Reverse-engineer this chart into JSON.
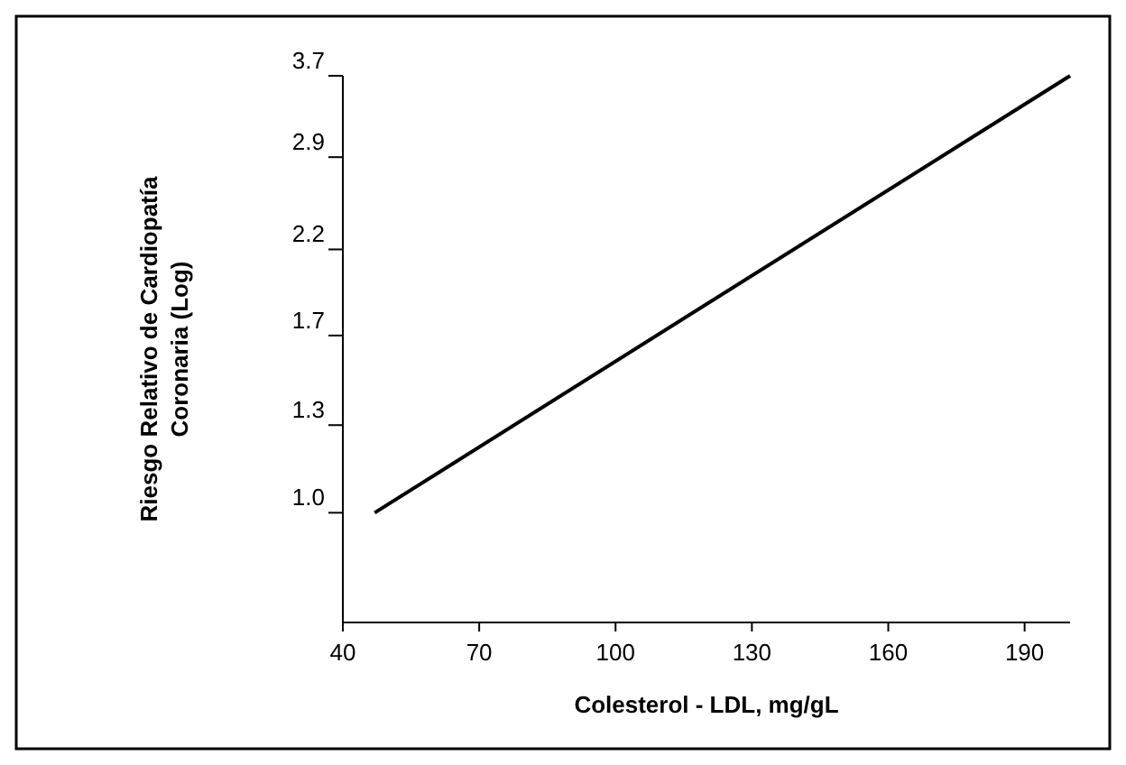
{
  "chart_data": {
    "type": "line",
    "xlabel": "Colesterol - LDL, mg/gL",
    "ylabel": "Riesgo Relativo de Cardiopatía\nCoronaria (Log)",
    "series": [
      {
        "color": "#000000",
        "x": [
          47,
          200
        ],
        "values": [
          1.0,
          3.7
        ]
      }
    ],
    "xlim": [
      40,
      200
    ],
    "xticks": [
      40,
      70,
      100,
      130,
      160,
      190
    ],
    "ylim": [
      0.72,
      3.7
    ],
    "yticks": [
      {
        "value": 1.0,
        "label": "1.0"
      },
      1.3,
      1.7,
      2.2,
      2.9,
      3.7
    ],
    "log": "y",
    "grid": false,
    "marker": "none",
    "line_style": "solid"
  }
}
